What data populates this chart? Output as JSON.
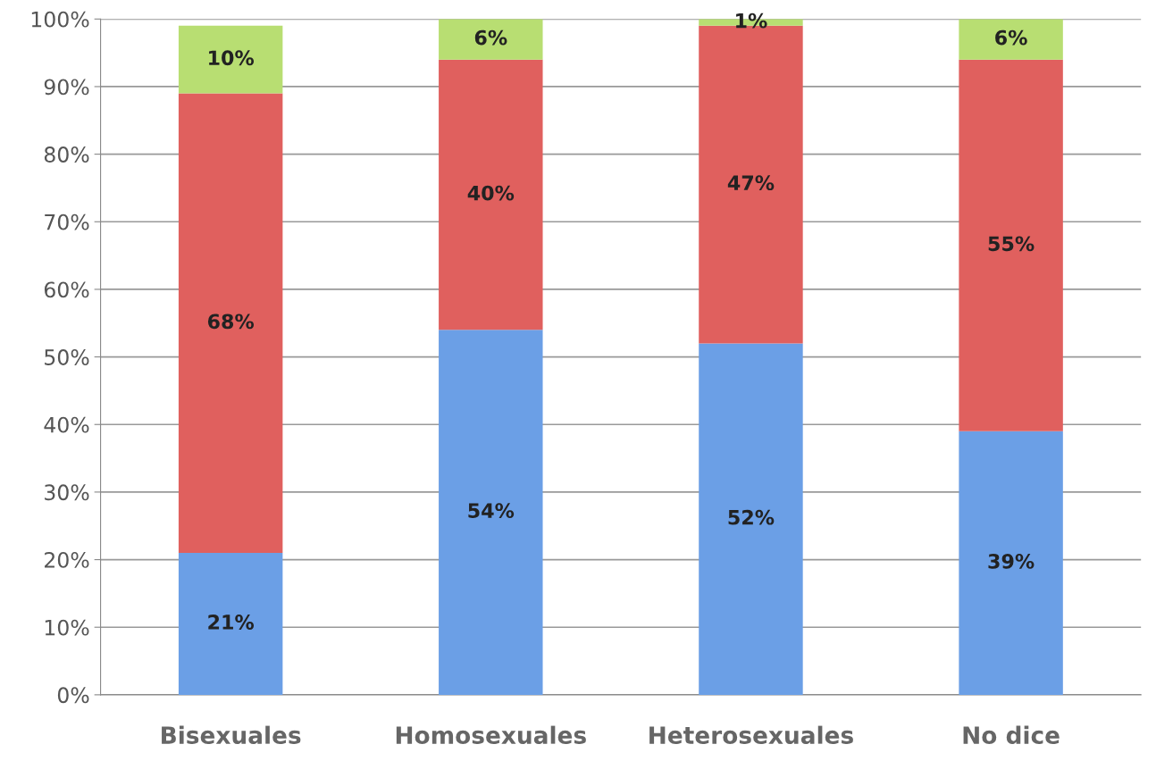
{
  "chart_data": {
    "type": "bar",
    "stacked": true,
    "categories": [
      "Bisexuales",
      "Homosexuales",
      "Heterosexuales",
      "No dice"
    ],
    "series": [
      {
        "color": "#6b9fe6",
        "values": [
          21,
          54,
          52,
          39
        ],
        "value_labels": [
          "21%",
          "54%",
          "52%",
          "39%"
        ]
      },
      {
        "color": "#e0605e",
        "values": [
          68,
          40,
          47,
          55
        ],
        "value_labels": [
          "68%",
          "40%",
          "47%",
          "55%"
        ]
      },
      {
        "color": "#b8de72",
        "values": [
          10,
          6,
          1,
          6
        ],
        "value_labels": [
          "10%",
          "6%",
          "1%",
          "6%"
        ]
      }
    ],
    "ylim": [
      0,
      100
    ],
    "yticks": [
      {
        "value": 0,
        "label": "0%"
      },
      {
        "value": 10,
        "label": "10%"
      },
      {
        "value": 20,
        "label": "20%"
      },
      {
        "value": 30,
        "label": "30%"
      },
      {
        "value": 40,
        "label": "40%"
      },
      {
        "value": 50,
        "label": "50%"
      },
      {
        "value": 60,
        "label": "60%"
      },
      {
        "value": 70,
        "label": "70%"
      },
      {
        "value": 80,
        "label": "80%"
      },
      {
        "value": 90,
        "label": "90%"
      },
      {
        "value": 100,
        "label": "100%"
      }
    ],
    "grid": "y",
    "legend": false
  }
}
